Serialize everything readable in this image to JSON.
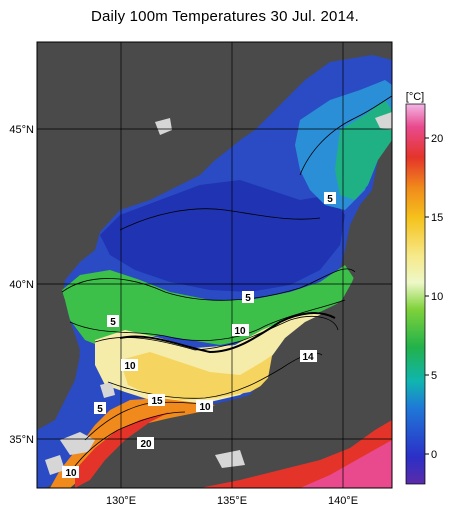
{
  "title": "Daily 100m Temperatures 30 Jul. 2014.",
  "colorbar": {
    "unit": "[°C]",
    "ticks": [
      {
        "value": 20,
        "label": "20"
      },
      {
        "value": 15,
        "label": "15"
      },
      {
        "value": 10,
        "label": "10"
      },
      {
        "value": 5,
        "label": "5"
      },
      {
        "value": 0,
        "label": "0"
      }
    ]
  },
  "axes": {
    "lat_labels": [
      {
        "value": 45,
        "label": "45°N"
      },
      {
        "value": 40,
        "label": "40°N"
      },
      {
        "value": 35,
        "label": "35°N"
      }
    ],
    "lon_labels": [
      {
        "value": 130,
        "label": "130°E"
      },
      {
        "value": 135,
        "label": "135°E"
      },
      {
        "value": 140,
        "label": "140°E"
      }
    ]
  },
  "contour_labels": [
    "5",
    "5",
    "5",
    "10",
    "10",
    "10",
    "15",
    "10",
    "5",
    "20",
    "10",
    "14"
  ],
  "colors": {
    "land": "#4a4a4a",
    "ice_patch": "#d6d6d6",
    "cold": "#1e3fbe",
    "warm": "#e4382a"
  }
}
